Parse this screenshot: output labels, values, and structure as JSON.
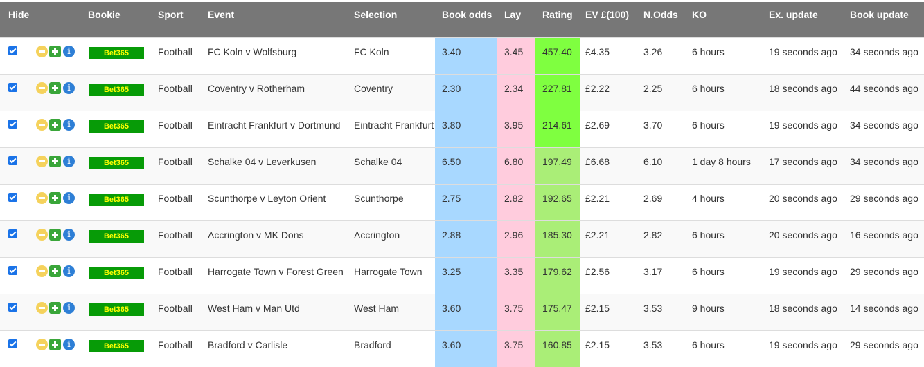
{
  "table": {
    "headers": {
      "hide": "Hide",
      "bookie": "Bookie",
      "sport": "Sport",
      "event": "Event",
      "selection": "Selection",
      "book_odds": "Book odds",
      "lay": "Lay",
      "rating": "Rating",
      "ev": "EV £(100)",
      "n_odds": "N.Odds",
      "ko": "KO",
      "ex_update": "Ex. update",
      "book_update": "Book update"
    },
    "action_icons": [
      "minus-icon",
      "plus-icon",
      "info-icon"
    ],
    "info_glyph": "i",
    "colors": {
      "header_bg": "#777777",
      "book_odds_bg": "#a8d8ff",
      "lay_bg": "#ffccdd",
      "rating_high_bg": "#7fff40",
      "rating_bg": "#aaee77",
      "bookie_badge_bg": "#079b07",
      "bookie_badge_text": "#ffff00"
    },
    "rows": [
      {
        "hidden": true,
        "bookie": "Bet365",
        "sport": "Football",
        "event": "FC Koln v Wolfsburg",
        "selection": "FC Koln",
        "book_odds": "3.40",
        "lay": "3.45",
        "rating": "457.40",
        "rating_tier": "high",
        "ev": "£4.35",
        "n_odds": "3.26",
        "ko": "6 hours",
        "ex_update": "19 seconds ago",
        "book_update": "34 seconds ago"
      },
      {
        "hidden": true,
        "bookie": "Bet365",
        "sport": "Football",
        "event": "Coventry v Rotherham",
        "selection": "Coventry",
        "book_odds": "2.30",
        "lay": "2.34",
        "rating": "227.81",
        "rating_tier": "high",
        "ev": "£2.22",
        "n_odds": "2.25",
        "ko": "6 hours",
        "ex_update": "18 seconds ago",
        "book_update": "44 seconds ago"
      },
      {
        "hidden": true,
        "bookie": "Bet365",
        "sport": "Football",
        "event": "Eintracht Frankfurt v Dortmund",
        "selection": "Eintracht Frankfurt",
        "book_odds": "3.80",
        "lay": "3.95",
        "rating": "214.61",
        "rating_tier": "high",
        "ev": "£2.69",
        "n_odds": "3.70",
        "ko": "6 hours",
        "ex_update": "19 seconds ago",
        "book_update": "34 seconds ago"
      },
      {
        "hidden": true,
        "bookie": "Bet365",
        "sport": "Football",
        "event": "Schalke 04 v Leverkusen",
        "selection": "Schalke 04",
        "book_odds": "6.50",
        "lay": "6.80",
        "rating": "197.49",
        "rating_tier": "normal",
        "ev": "£6.68",
        "n_odds": "6.10",
        "ko": "1 day 8 hours",
        "ex_update": "17 seconds ago",
        "book_update": "34 seconds ago"
      },
      {
        "hidden": true,
        "bookie": "Bet365",
        "sport": "Football",
        "event": "Scunthorpe v Leyton Orient",
        "selection": "Scunthorpe",
        "book_odds": "2.75",
        "lay": "2.82",
        "rating": "192.65",
        "rating_tier": "normal",
        "ev": "£2.21",
        "n_odds": "2.69",
        "ko": "4 hours",
        "ex_update": "20 seconds ago",
        "book_update": "29 seconds ago"
      },
      {
        "hidden": true,
        "bookie": "Bet365",
        "sport": "Football",
        "event": "Accrington v MK Dons",
        "selection": "Accrington",
        "book_odds": "2.88",
        "lay": "2.96",
        "rating": "185.30",
        "rating_tier": "normal",
        "ev": "£2.21",
        "n_odds": "2.82",
        "ko": "6 hours",
        "ex_update": "20 seconds ago",
        "book_update": "16 seconds ago"
      },
      {
        "hidden": true,
        "bookie": "Bet365",
        "sport": "Football",
        "event": "Harrogate Town v Forest Green",
        "selection": "Harrogate Town",
        "book_odds": "3.25",
        "lay": "3.35",
        "rating": "179.62",
        "rating_tier": "normal",
        "ev": "£2.56",
        "n_odds": "3.17",
        "ko": "6 hours",
        "ex_update": "19 seconds ago",
        "book_update": "29 seconds ago"
      },
      {
        "hidden": true,
        "bookie": "Bet365",
        "sport": "Football",
        "event": "West Ham v Man Utd",
        "selection": "West Ham",
        "book_odds": "3.60",
        "lay": "3.75",
        "rating": "175.47",
        "rating_tier": "normal",
        "ev": "£2.15",
        "n_odds": "3.53",
        "ko": "9 hours",
        "ex_update": "18 seconds ago",
        "book_update": "14 seconds ago"
      },
      {
        "hidden": true,
        "bookie": "Bet365",
        "sport": "Football",
        "event": "Bradford v Carlisle",
        "selection": "Bradford",
        "book_odds": "3.60",
        "lay": "3.75",
        "rating": "160.85",
        "rating_tier": "normal",
        "ev": "£2.15",
        "n_odds": "3.53",
        "ko": "6 hours",
        "ex_update": "19 seconds ago",
        "book_update": "29 seconds ago"
      }
    ]
  }
}
